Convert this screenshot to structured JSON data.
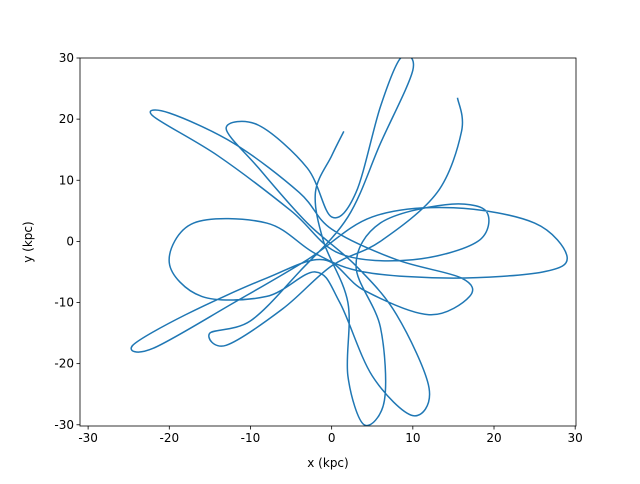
{
  "chart_data": {
    "type": "line",
    "xlabel": "x (kpc)",
    "ylabel": "y (kpc)",
    "xlim": [
      -31,
      30.1
    ],
    "ylim": [
      -30.2,
      30
    ],
    "xticks": [
      -30,
      -20,
      -10,
      0,
      10,
      20,
      30
    ],
    "yticks": [
      -30,
      -20,
      -10,
      0,
      10,
      20,
      30
    ],
    "series": [
      {
        "color": "#1f77b4",
        "x": [
          1.5,
          0,
          -2,
          -1,
          2,
          2,
          4,
          6.5,
          6,
          3,
          6,
          14,
          19,
          18,
          10,
          1,
          -5,
          -14,
          -22,
          -20,
          -12,
          -4,
          0,
          8,
          16,
          17,
          12,
          4,
          -1,
          -8,
          -18,
          -24.5,
          -22,
          -12,
          -3,
          5,
          15,
          25,
          29,
          26,
          15,
          4,
          -2,
          -8,
          -17,
          -20,
          -16,
          -8,
          -2,
          1,
          5,
          10,
          12,
          8,
          3,
          -3,
          -9,
          -13,
          -9,
          -3,
          0,
          3,
          6,
          8.5,
          10,
          6,
          2,
          -4,
          -10,
          -15,
          -13,
          -6,
          0,
          6,
          13,
          16,
          15.5
        ],
        "y": [
          18,
          14,
          8,
          0,
          -10,
          -22,
          -30,
          -26,
          -14,
          -4,
          3,
          6,
          5,
          0,
          -3,
          -2,
          5,
          14,
          20.5,
          21,
          16,
          8,
          2,
          -3,
          -6,
          -9,
          -12,
          -8,
          -3,
          -6,
          -12,
          -17,
          -17.5,
          -10,
          -3,
          4,
          5.5,
          3,
          -2.5,
          -5,
          -6,
          -5,
          -2,
          3,
          3,
          -3.5,
          -9,
          -9,
          -5,
          -10,
          -22,
          -28.5,
          -24,
          -12,
          -4,
          3,
          12,
          18.5,
          19,
          12,
          4,
          8,
          22,
          30,
          28,
          16,
          4,
          -5,
          -13,
          -15,
          -17,
          -11,
          -4,
          0,
          8,
          18,
          23.5
        ]
      }
    ]
  }
}
